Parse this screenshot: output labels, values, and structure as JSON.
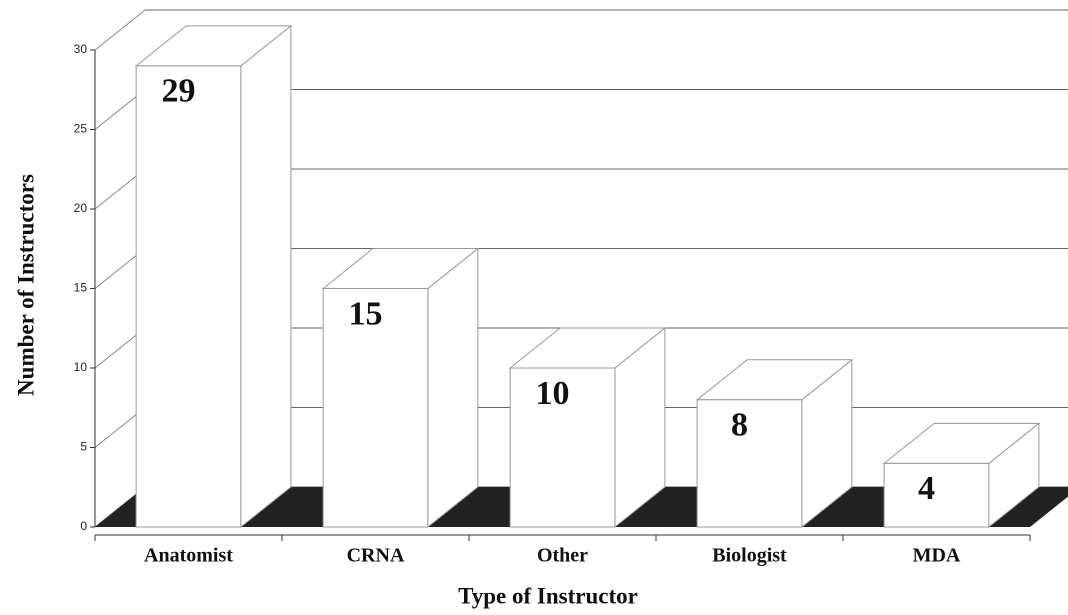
{
  "chart_data": {
    "type": "bar3d",
    "xlabel": "Type of Instructor",
    "ylabel": "Number of Instructors",
    "categories": [
      "Anatomist",
      "CRNA",
      "Other",
      "Biologist",
      "MDA"
    ],
    "values": [
      29,
      15,
      10,
      8,
      4
    ],
    "color": "#ffffff",
    "ylim": [
      0,
      30
    ],
    "yticks": [
      0,
      5,
      10,
      15,
      20,
      25,
      30
    ],
    "grid": true
  }
}
